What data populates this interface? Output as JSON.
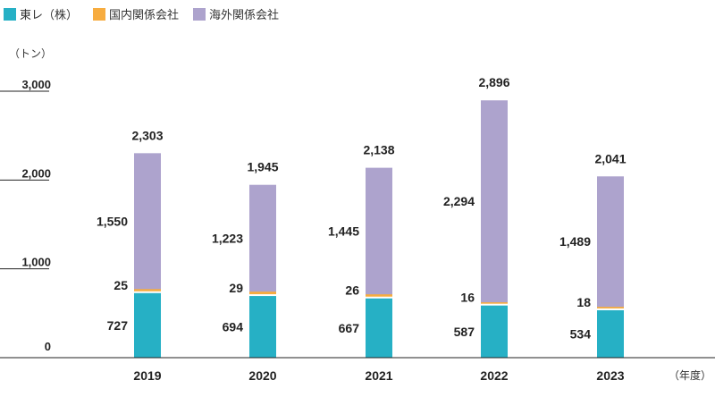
{
  "chart_data": {
    "type": "bar",
    "stacked": true,
    "unit_label": "（トン）",
    "xlabel": "（年度）",
    "categories": [
      "2019",
      "2020",
      "2021",
      "2022",
      "2023"
    ],
    "series": [
      {
        "name": "東レ（株）",
        "color": "#26b0c5",
        "values": [
          727,
          694,
          667,
          587,
          534
        ]
      },
      {
        "name": "国内関係会社",
        "color": "#f7ac3f",
        "values": [
          25,
          29,
          26,
          16,
          18
        ]
      },
      {
        "name": "海外関係会社",
        "color": "#ada3cd",
        "values": [
          1550,
          1223,
          1445,
          2294,
          1489
        ]
      }
    ],
    "totals": [
      "2,303",
      "1,945",
      "2,138",
      "2,896",
      "2,041"
    ],
    "value_labels": [
      [
        "727",
        "694",
        "667",
        "587",
        "534"
      ],
      [
        "25",
        "29",
        "26",
        "16",
        "18"
      ],
      [
        "1,550",
        "1,223",
        "1,445",
        "2,294",
        "1,489"
      ]
    ],
    "yticks": [
      {
        "value": 0,
        "label": "0"
      },
      {
        "value": 1000,
        "label": "1,000"
      },
      {
        "value": 2000,
        "label": "2,000"
      },
      {
        "value": 3000,
        "label": "3,000"
      }
    ],
    "ylim": [
      0,
      3000
    ],
    "grid": false,
    "legend_position": "top-left"
  }
}
